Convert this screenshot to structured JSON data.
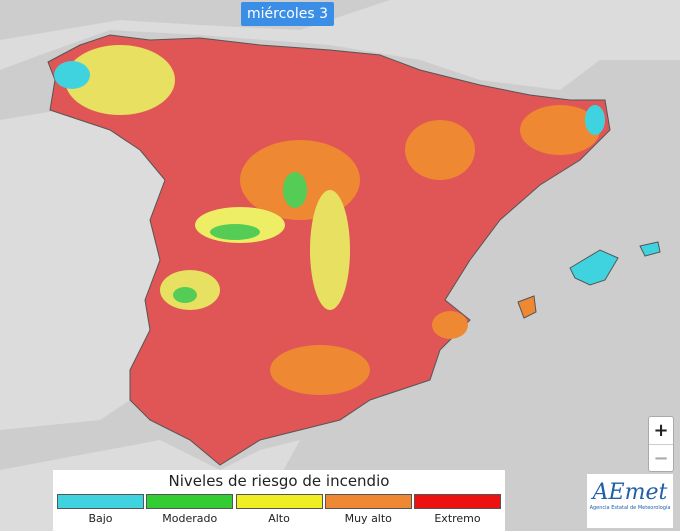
{
  "header": {
    "day": "miércoles 3"
  },
  "legend": {
    "title": "Niveles de riesgo de incendio",
    "items": [
      {
        "label": "Bajo",
        "color": "#3fd3e0"
      },
      {
        "label": "Moderado",
        "color": "#33cc33"
      },
      {
        "label": "Alto",
        "color": "#eeee22"
      },
      {
        "label": "Muy alto",
        "color": "#ee8833"
      },
      {
        "label": "Extremo",
        "color": "#ee1111"
      }
    ]
  },
  "zoom": {
    "in": "+",
    "out": "−"
  },
  "logo": {
    "name": "AEmet",
    "subtitle": "Agencia Estatal de Meteorología"
  }
}
